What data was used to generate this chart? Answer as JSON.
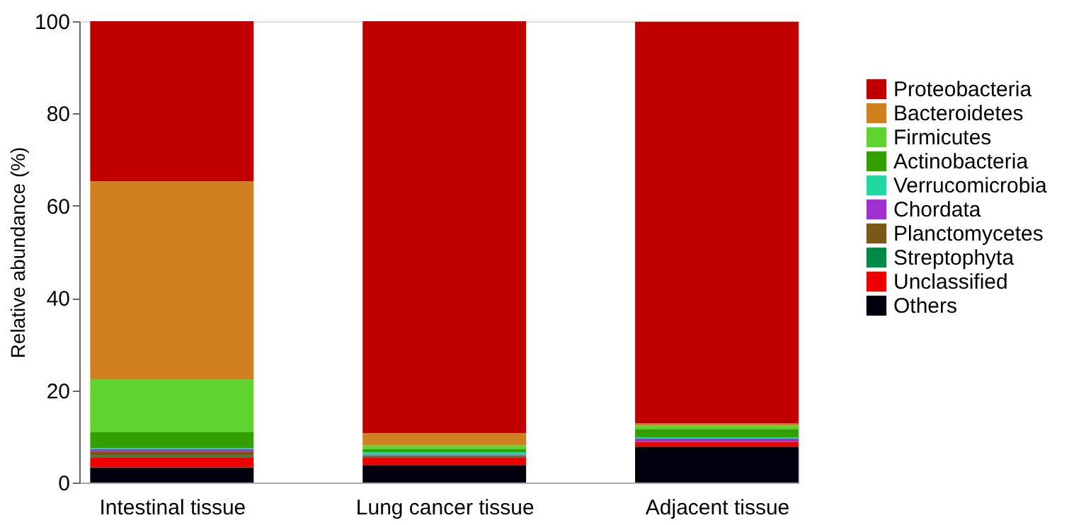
{
  "chart_data": {
    "type": "bar",
    "stacked": true,
    "ylabel": "Relative abundance (%)",
    "categories": [
      "Intestinal tissue",
      "Lung cancer tissue",
      "Adjacent tissue"
    ],
    "ylim": [
      0,
      100
    ],
    "yticks": [
      0,
      20,
      40,
      60,
      80,
      100
    ],
    "grid": false,
    "legend": "right",
    "series": [
      {
        "name": "Others",
        "color": "#00000f",
        "values": [
          3.3,
          3.8,
          7.8
        ]
      },
      {
        "name": "Unclassified",
        "color": "#ee0000",
        "values": [
          2.2,
          1.7,
          1.0
        ]
      },
      {
        "name": "Streptophyta",
        "color": "#008a48",
        "values": [
          0.3,
          0.2,
          null
        ]
      },
      {
        "name": "Planctomycetes",
        "color": "#7a5818",
        "values": [
          1.0,
          0.2,
          0.1
        ]
      },
      {
        "name": "Chordata",
        "color": "#a030d0",
        "values": [
          0.4,
          0.2,
          0.6
        ]
      },
      {
        "name": "Verrucomicrobia",
        "color": "#20d8a0",
        "values": [
          0.3,
          0.5,
          0.3
        ]
      },
      {
        "name": "Actinobacteria",
        "color": "#32a000",
        "values": [
          3.5,
          0.6,
          1.8
        ]
      },
      {
        "name": "Firmicutes",
        "color": "#5fd32e",
        "values": [
          11.4,
          0.9,
          0.8
        ]
      },
      {
        "name": "Bacteroidetes",
        "color": "#d0801e",
        "values": [
          42.9,
          2.6,
          0.4
        ]
      },
      {
        "name": "Proteobacteria",
        "color": "#c00000",
        "values": [
          34.7,
          89.3,
          87.1
        ]
      }
    ]
  }
}
